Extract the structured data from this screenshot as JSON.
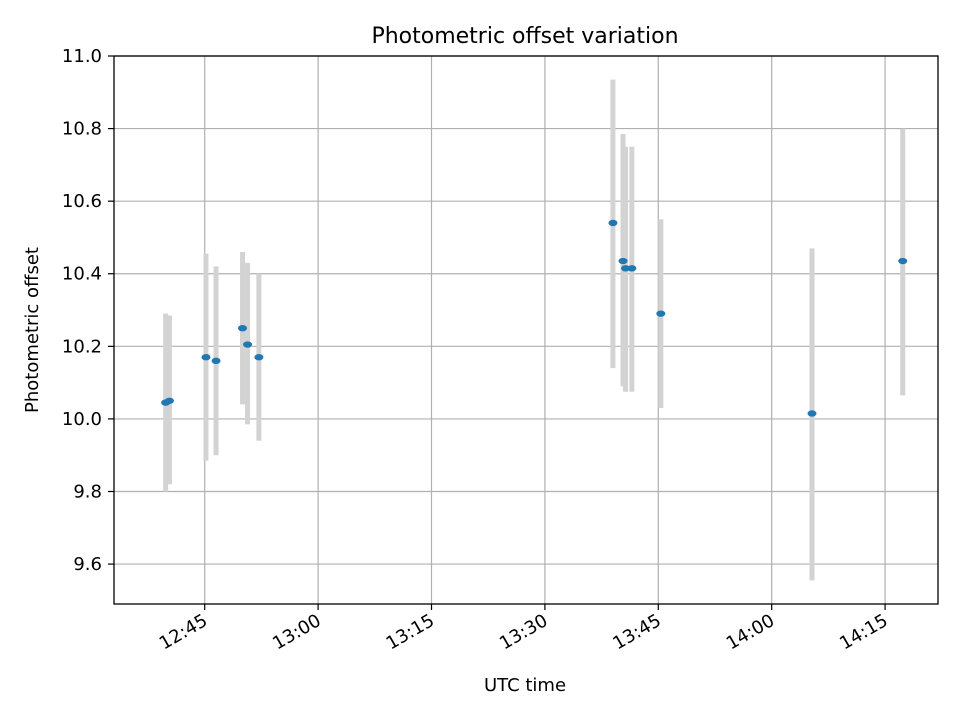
{
  "chart_data": {
    "type": "scatter",
    "title": "Photometric offset variation",
    "xlabel": "UTC time",
    "ylabel": "Photometric offset",
    "x_ticks": [
      "12:45",
      "13:00",
      "13:15",
      "13:30",
      "13:45",
      "14:00",
      "14:15"
    ],
    "y_ticks": [
      "9.6",
      "9.8",
      "10.0",
      "10.2",
      "10.4",
      "10.6",
      "10.8",
      "11.0"
    ],
    "xlim": [
      "12:33",
      "14:22"
    ],
    "ylim": [
      9.49,
      11.0
    ],
    "grid": true,
    "colors": {
      "point": "#1f77b4",
      "errorbar": "#d3d3d3",
      "grid": "#b0b0b0"
    },
    "points": [
      {
        "x": "12:39:50",
        "y": 10.045,
        "ymin": 9.8,
        "ymax": 10.29
      },
      {
        "x": "12:40:20",
        "y": 10.05,
        "ymin": 9.82,
        "ymax": 10.285
      },
      {
        "x": "12:45:10",
        "y": 10.17,
        "ymin": 9.885,
        "ymax": 10.455
      },
      {
        "x": "12:46:30",
        "y": 10.16,
        "ymin": 9.9,
        "ymax": 10.42
      },
      {
        "x": "12:50:00",
        "y": 10.25,
        "ymin": 10.04,
        "ymax": 10.46
      },
      {
        "x": "12:50:40",
        "y": 10.205,
        "ymin": 9.985,
        "ymax": 10.43
      },
      {
        "x": "12:52:10",
        "y": 10.17,
        "ymin": 9.94,
        "ymax": 10.4
      },
      {
        "x": "13:39:00",
        "y": 10.54,
        "ymin": 10.14,
        "ymax": 10.935
      },
      {
        "x": "13:40:20",
        "y": 10.435,
        "ymin": 10.09,
        "ymax": 10.785
      },
      {
        "x": "13:40:40",
        "y": 10.415,
        "ymin": 10.075,
        "ymax": 10.75
      },
      {
        "x": "13:41:30",
        "y": 10.415,
        "ymin": 10.075,
        "ymax": 10.75
      },
      {
        "x": "13:45:20",
        "y": 10.29,
        "ymin": 10.03,
        "ymax": 10.55
      },
      {
        "x": "14:05:20",
        "y": 10.015,
        "ymin": 9.555,
        "ymax": 10.47
      },
      {
        "x": "14:17:20",
        "y": 10.435,
        "ymin": 10.065,
        "ymax": 10.8
      }
    ]
  }
}
